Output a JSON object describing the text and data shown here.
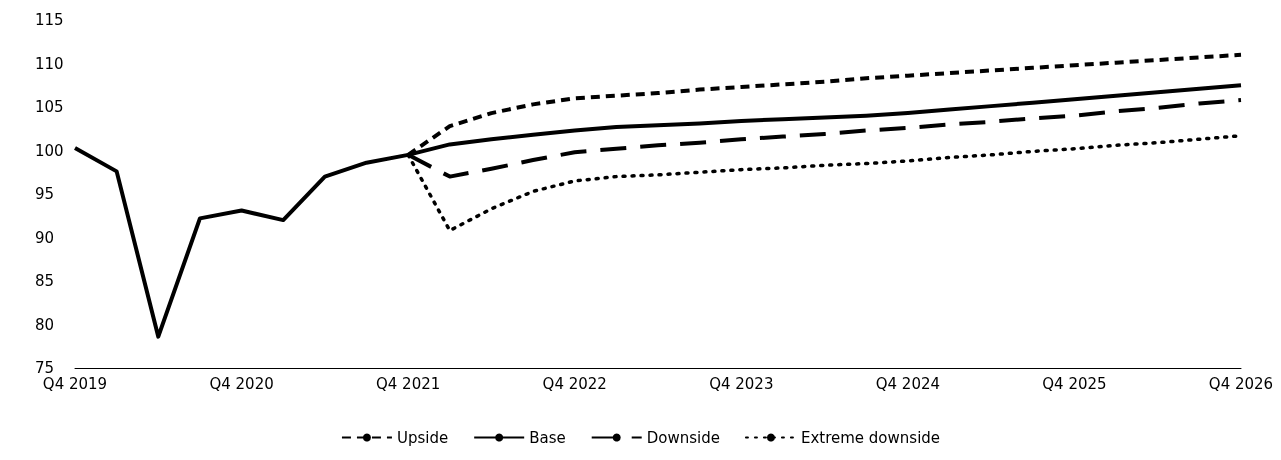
{
  "chart_data": {
    "type": "line",
    "categories": [
      "Q4 2019",
      null,
      null,
      null,
      "Q4 2020",
      null,
      null,
      null,
      "Q4 2021",
      null,
      null,
      null,
      "Q4 2022",
      null,
      null,
      null,
      "Q4 2023",
      null,
      null,
      null,
      "Q4 2024",
      null,
      null,
      null,
      "Q4 2025",
      null,
      null,
      null,
      "Q4 2026"
    ],
    "series": [
      {
        "name": "Upside",
        "color": "#000000",
        "line_style": "dashed",
        "values": [
          null,
          null,
          null,
          null,
          null,
          null,
          null,
          null,
          99.5,
          102.8,
          104.3,
          105.3,
          106,
          106.3,
          106.6,
          107,
          107.3,
          107.6,
          107.9,
          108.3,
          108.6,
          108.9,
          109.2,
          109.5,
          109.8,
          110.1,
          110.4,
          110.7,
          111
        ]
      },
      {
        "name": "Base",
        "color": "#000000",
        "line_style": "solid",
        "values": [
          100.3,
          97.6,
          78.6,
          92.2,
          93.1,
          92,
          97,
          98.6,
          99.5,
          100.7,
          101.3,
          101.8,
          102.3,
          102.7,
          102.9,
          103.1,
          103.4,
          103.6,
          103.8,
          104,
          104.3,
          104.7,
          105.1,
          105.5,
          105.9,
          106.3,
          106.7,
          107.1,
          107.5
        ]
      },
      {
        "name": "Downside",
        "color": "#000000",
        "line_style": "dashed",
        "values": [
          null,
          null,
          null,
          null,
          null,
          null,
          null,
          null,
          99.5,
          97,
          97.9,
          98.9,
          99.8,
          100.2,
          100.6,
          100.9,
          101.3,
          101.6,
          101.9,
          102.3,
          102.6,
          103,
          103.3,
          103.7,
          104,
          104.5,
          104.9,
          105.4,
          105.8
        ]
      },
      {
        "name": "Extreme downside",
        "color": "#000000",
        "line_style": "dotted",
        "values": [
          null,
          null,
          null,
          null,
          null,
          null,
          null,
          null,
          99.5,
          90.8,
          93.3,
          95.3,
          96.5,
          97,
          97.2,
          97.5,
          97.8,
          98,
          98.3,
          98.5,
          98.8,
          99.2,
          99.5,
          99.9,
          100.2,
          100.6,
          100.9,
          101.3,
          101.7
        ]
      }
    ],
    "ylim": [
      75,
      115
    ],
    "yticks": [
      75,
      80,
      85,
      90,
      95,
      100,
      105,
      110,
      115
    ],
    "grid": false,
    "legend": "bottom",
    "marker": "none"
  }
}
